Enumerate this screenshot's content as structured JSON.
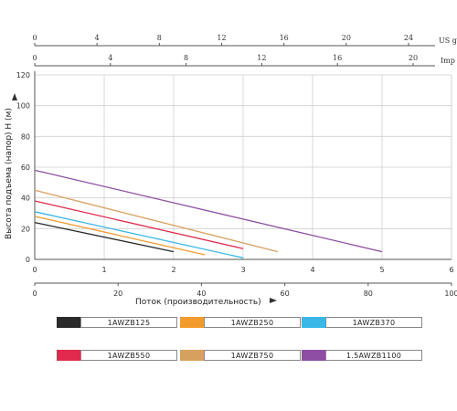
{
  "chart_data": {
    "type": "line",
    "ylabel": "Высота подъема (напор) Н (м)",
    "xlabel": "Поток (производительность)",
    "x_primary": {
      "ticks": [
        0,
        1,
        2,
        3,
        4,
        5,
        6
      ],
      "range": [
        0,
        6
      ]
    },
    "x_percent": {
      "ticks": [
        0,
        20,
        40,
        60,
        80,
        100
      ],
      "range": [
        0,
        100
      ]
    },
    "x_us": {
      "label": "US g",
      "ticks": [
        0,
        4,
        8,
        12,
        16,
        20,
        24
      ]
    },
    "x_imp": {
      "label": "Imp",
      "ticks": [
        0,
        4,
        8,
        12,
        16,
        20
      ]
    },
    "y": {
      "ticks": [
        0,
        20,
        40,
        60,
        80,
        100,
        120
      ],
      "range": [
        0,
        120
      ]
    },
    "grid": true,
    "series": [
      {
        "name": "1AWZB125",
        "color": "#2a2a2a",
        "x": [
          0,
          2.0
        ],
        "y": [
          24,
          5
        ]
      },
      {
        "name": "1AWZB250",
        "color": "#f39a2c",
        "x": [
          0,
          2.45
        ],
        "y": [
          28,
          3
        ]
      },
      {
        "name": "1AWZB370",
        "color": "#39b7e6",
        "x": [
          0,
          3.0
        ],
        "y": [
          31,
          1
        ]
      },
      {
        "name": "1AWZB550",
        "color": "#e02a4e",
        "x": [
          0,
          3.0
        ],
        "y": [
          38,
          7
        ]
      },
      {
        "name": "1AWZB750",
        "color": "#d8a060",
        "x": [
          0,
          3.5
        ],
        "y": [
          45,
          5
        ]
      },
      {
        "name": "1.5AWZB1100",
        "color": "#8e4fa3",
        "x": [
          0,
          5.0
        ],
        "y": [
          58,
          5
        ]
      }
    ]
  }
}
